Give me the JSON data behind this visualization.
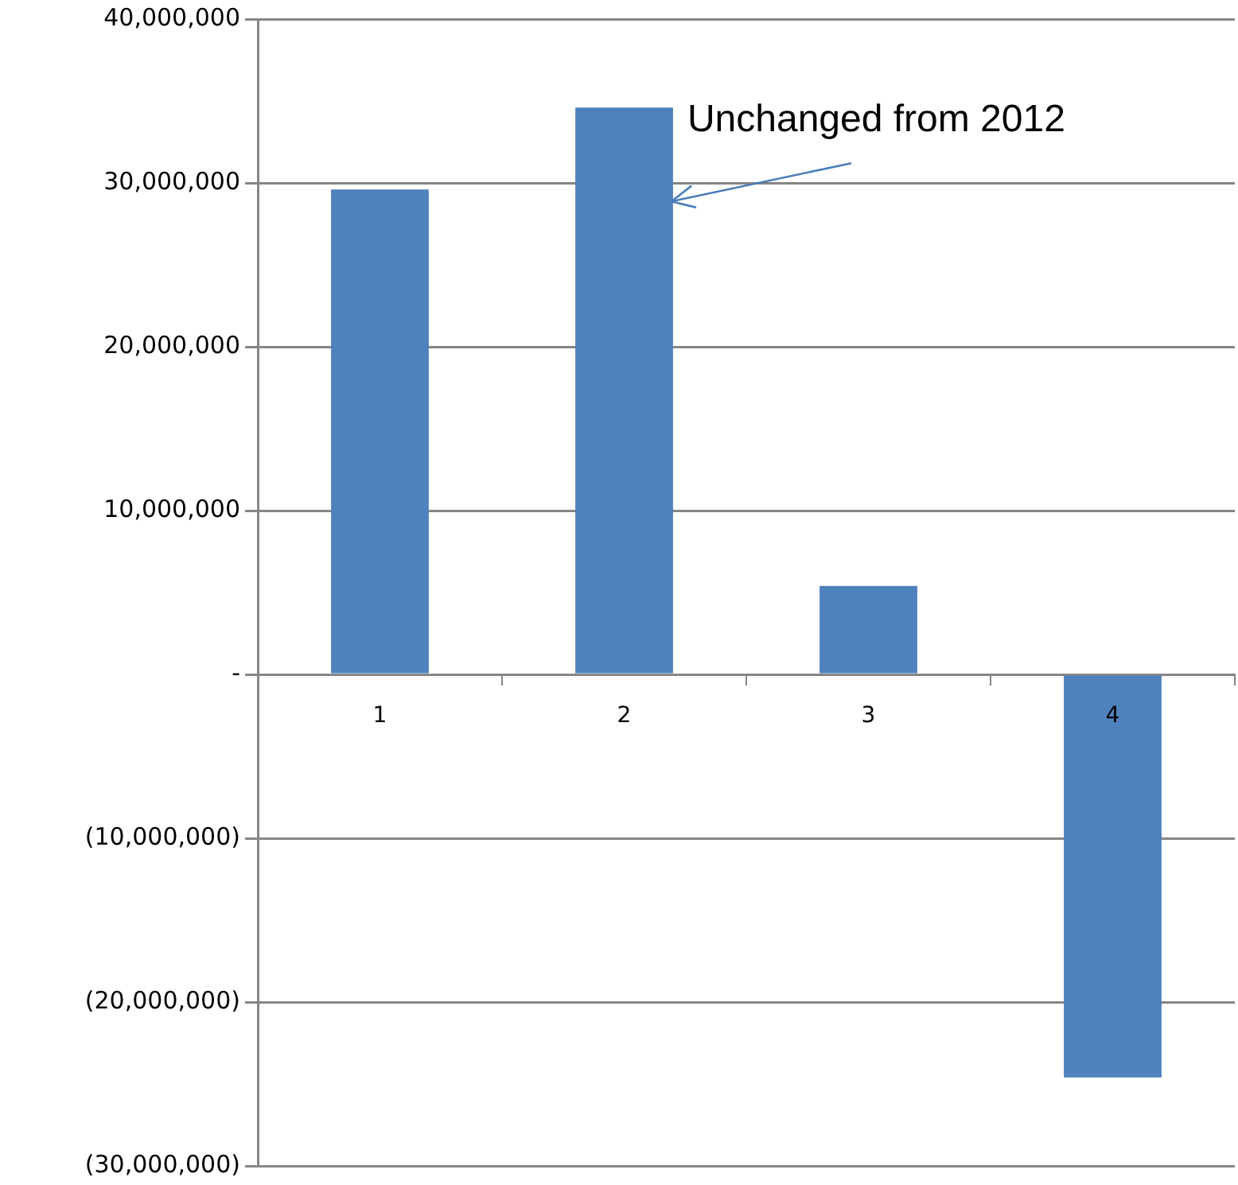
{
  "chart_data": {
    "type": "bar",
    "categories": [
      "1",
      "2",
      "3",
      "4"
    ],
    "values": [
      29600000,
      34600000,
      5400000,
      -24600000
    ],
    "color": "#4f81bd",
    "ylim": [
      -30000000,
      40000000
    ],
    "yticks": [
      {
        "value": -30000000,
        "label": "(30,000,000)"
      },
      {
        "value": -20000000,
        "label": "(20,000,000)"
      },
      {
        "value": -10000000,
        "label": "(10,000,000)"
      },
      {
        "value": 0,
        "label": "-"
      },
      {
        "value": 10000000,
        "label": "10,000,000"
      },
      {
        "value": 20000000,
        "label": "20,000,000"
      },
      {
        "value": 30000000,
        "label": "30,000,000"
      },
      {
        "value": 40000000,
        "label": "40,000,000"
      }
    ],
    "grid": "y",
    "legend": false,
    "annotations": [
      {
        "text": "Unchanged from 2012",
        "x": "2",
        "y": 34600000
      }
    ]
  }
}
